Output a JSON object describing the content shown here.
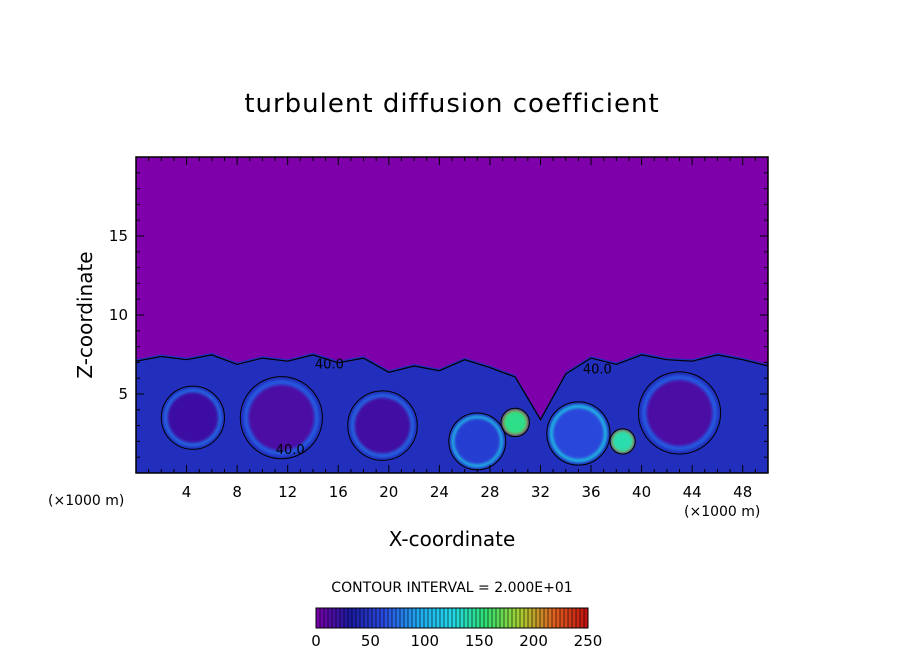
{
  "chart_data": {
    "type": "heatmap",
    "title": "turbulent diffusion coefficient",
    "xlabel": "X-coordinate",
    "ylabel": "Z-coordinate",
    "x_unit_left": "(×1000 m)",
    "x_unit_right": "(×1000 m)",
    "xlim": [
      0,
      50
    ],
    "ylim": [
      0,
      20
    ],
    "xticks": [
      4,
      8,
      12,
      16,
      20,
      24,
      28,
      32,
      36,
      40,
      44,
      48
    ],
    "yticks": [
      5,
      10,
      15
    ],
    "contour_interval_text": "CONTOUR INTERVAL = 2.000E+01",
    "contour_labels": [
      {
        "x": 15.3,
        "z": 6.6,
        "text": "40.0"
      },
      {
        "x": 36.5,
        "z": 6.3,
        "text": "40.0"
      },
      {
        "x": 12.2,
        "z": 1.2,
        "text": "40.0"
      }
    ],
    "boundary_layer_top_km": [
      [
        0,
        7.2
      ],
      [
        2,
        7.5
      ],
      [
        4,
        7.3
      ],
      [
        6,
        7.6
      ],
      [
        8,
        7.0
      ],
      [
        10,
        7.4
      ],
      [
        12,
        7.2
      ],
      [
        14,
        7.6
      ],
      [
        16,
        7.1
      ],
      [
        18,
        7.4
      ],
      [
        20,
        6.5
      ],
      [
        22,
        6.9
      ],
      [
        24,
        6.6
      ],
      [
        26,
        7.3
      ],
      [
        28,
        6.8
      ],
      [
        30,
        6.2
      ],
      [
        32,
        3.5
      ],
      [
        34,
        6.4
      ],
      [
        36,
        7.4
      ],
      [
        38,
        7.0
      ],
      [
        40,
        7.6
      ],
      [
        42,
        7.3
      ],
      [
        44,
        7.2
      ],
      [
        46,
        7.6
      ],
      [
        48,
        7.3
      ],
      [
        50,
        6.9
      ]
    ],
    "eddies": [
      {
        "x": 4.5,
        "z": 3.5,
        "r": 2.0,
        "value": 20
      },
      {
        "x": 11.5,
        "z": 3.5,
        "r": 2.6,
        "value": 15
      },
      {
        "x": 19.5,
        "z": 3.0,
        "r": 2.2,
        "value": 18
      },
      {
        "x": 27.0,
        "z": 2.0,
        "r": 1.8,
        "value": 55
      },
      {
        "x": 35.0,
        "z": 2.5,
        "r": 2.0,
        "value": 60
      },
      {
        "x": 43.0,
        "z": 3.8,
        "r": 2.6,
        "value": 15
      },
      {
        "x": 30.0,
        "z": 3.2,
        "r": 0.9,
        "value": 150
      },
      {
        "x": 38.5,
        "z": 2.0,
        "r": 0.8,
        "value": 140
      }
    ],
    "colorbar": {
      "ticks": [
        0,
        50,
        100,
        150,
        200,
        250
      ],
      "range": [
        0,
        250
      ],
      "colors": [
        "#7a00a8",
        "#1a1aa0",
        "#2a4ae0",
        "#1fa8f0",
        "#22d8e8",
        "#30e070",
        "#a8d030",
        "#e06020",
        "#c01010"
      ]
    },
    "background_color": "#7e00ab"
  }
}
